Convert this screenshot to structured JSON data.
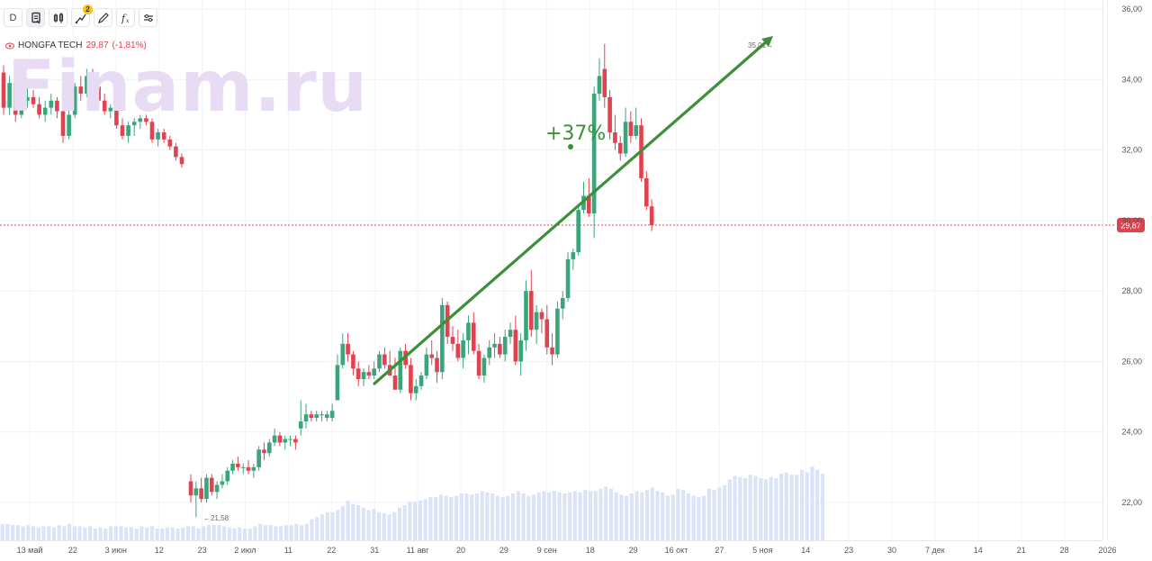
{
  "toolbar": {
    "interval_label": "D",
    "indicators_badge": "2"
  },
  "legend": {
    "ticker": "HONGFA TECH",
    "last": "29,87",
    "change": "(-1,81%)"
  },
  "watermark": "Finam.ru",
  "annotation": {
    "pct": "+37%",
    "low_label": "←21,58",
    "high_label": "35,01→"
  },
  "current_price_label": "29,87",
  "colors": {
    "up": "#3aa57a",
    "down": "#e0424f",
    "volume": "#dde3f7",
    "trend": "#3d8f3a"
  },
  "chart_data": {
    "type": "candlestick",
    "title": "HONGFA TECH",
    "ylim": [
      21.0,
      36.0
    ],
    "y_ticks": [
      "36,00",
      "34,00",
      "32,00",
      "30,00",
      "28,00",
      "26,00",
      "24,00",
      "22,00"
    ],
    "x_ticks": [
      "13 май",
      "22",
      "3 июн",
      "12",
      "23",
      "2 июл",
      "11",
      "22",
      "31",
      "11 авг",
      "20",
      "29",
      "9 сен",
      "18",
      "29",
      "16 окт",
      "27",
      "5 ноя",
      "14",
      "23",
      "30",
      "7 дек",
      "14",
      "21",
      "28",
      "2026"
    ],
    "last_price": 29.87,
    "low": 21.58,
    "high": 35.01,
    "trend_change": "+37%",
    "candles": [
      [
        34.2,
        34.4,
        33.0,
        33.2
      ],
      [
        33.2,
        34.1,
        33.0,
        33.9
      ],
      [
        33.9,
        34.2,
        32.8,
        33.0
      ],
      [
        33.0,
        33.6,
        32.9,
        33.4
      ],
      [
        33.4,
        33.8,
        33.2,
        33.5
      ],
      [
        33.5,
        33.7,
        33.2,
        33.3
      ],
      [
        33.3,
        33.5,
        32.9,
        33.0
      ],
      [
        33.0,
        33.4,
        32.8,
        33.2
      ],
      [
        33.2,
        33.6,
        33.0,
        33.4
      ],
      [
        33.4,
        33.5,
        32.9,
        33.1
      ],
      [
        33.1,
        33.3,
        32.2,
        32.4
      ],
      [
        32.4,
        33.2,
        32.3,
        33.0
      ],
      [
        33.0,
        33.9,
        32.9,
        33.8
      ],
      [
        33.8,
        34.1,
        33.4,
        33.6
      ],
      [
        33.6,
        34.3,
        33.5,
        34.1
      ],
      [
        34.1,
        34.3,
        33.7,
        33.8
      ],
      [
        33.8,
        34.0,
        33.2,
        33.4
      ],
      [
        33.4,
        33.6,
        33.0,
        33.1
      ],
      [
        33.1,
        33.3,
        32.9,
        33.2
      ],
      [
        33.2,
        33.4,
        32.6,
        32.7
      ],
      [
        32.7,
        32.9,
        32.3,
        32.4
      ],
      [
        32.4,
        32.8,
        32.2,
        32.7
      ],
      [
        32.7,
        32.9,
        32.4,
        32.8
      ],
      [
        32.8,
        33.0,
        32.6,
        32.9
      ],
      [
        32.9,
        33.0,
        32.7,
        32.8
      ],
      [
        32.8,
        32.9,
        32.2,
        32.3
      ],
      [
        32.3,
        32.6,
        32.1,
        32.5
      ],
      [
        32.5,
        32.6,
        32.2,
        32.3
      ],
      [
        32.3,
        32.4,
        32.0,
        32.1
      ],
      [
        32.1,
        32.2,
        31.7,
        31.8
      ],
      [
        31.8,
        31.9,
        31.5,
        31.6
      ],
      [
        22.6,
        22.8,
        22.0,
        22.2
      ],
      [
        22.2,
        22.6,
        21.58,
        22.4
      ],
      [
        22.4,
        22.7,
        22.0,
        22.1
      ],
      [
        22.1,
        22.8,
        22.0,
        22.7
      ],
      [
        22.7,
        22.8,
        22.2,
        22.3
      ],
      [
        22.3,
        22.6,
        22.1,
        22.5
      ],
      [
        22.5,
        22.8,
        22.4,
        22.6
      ],
      [
        22.6,
        23.0,
        22.5,
        22.9
      ],
      [
        22.9,
        23.2,
        22.8,
        23.1
      ],
      [
        23.1,
        23.3,
        22.9,
        23.0
      ],
      [
        23.0,
        23.1,
        22.8,
        23.0
      ],
      [
        23.0,
        23.2,
        22.8,
        22.9
      ],
      [
        22.9,
        23.1,
        22.7,
        23.0
      ],
      [
        23.0,
        23.6,
        22.9,
        23.5
      ],
      [
        23.5,
        23.7,
        23.2,
        23.4
      ],
      [
        23.4,
        23.8,
        23.3,
        23.7
      ],
      [
        23.7,
        24.1,
        23.6,
        23.9
      ],
      [
        23.9,
        24.0,
        23.6,
        23.7
      ],
      [
        23.7,
        23.9,
        23.5,
        23.8
      ],
      [
        23.8,
        23.9,
        23.6,
        23.8
      ],
      [
        23.8,
        23.9,
        23.5,
        23.7
      ],
      [
        24.1,
        24.9,
        23.9,
        24.3
      ],
      [
        24.3,
        24.8,
        24.1,
        24.5
      ],
      [
        24.5,
        24.6,
        24.3,
        24.4
      ],
      [
        24.4,
        24.6,
        24.3,
        24.5
      ],
      [
        24.5,
        24.6,
        24.3,
        24.5
      ],
      [
        24.4,
        24.6,
        24.3,
        24.5
      ],
      [
        24.4,
        24.8,
        24.3,
        24.6
      ],
      [
        24.9,
        26.2,
        24.9,
        25.9
      ],
      [
        25.9,
        26.8,
        25.8,
        26.5
      ],
      [
        26.5,
        26.8,
        26.0,
        26.2
      ],
      [
        26.2,
        26.3,
        25.6,
        25.8
      ],
      [
        25.8,
        26.0,
        25.3,
        25.5
      ],
      [
        25.5,
        25.8,
        25.3,
        25.7
      ],
      [
        25.7,
        25.9,
        25.5,
        25.6
      ],
      [
        25.6,
        26.0,
        25.5,
        25.8
      ],
      [
        25.8,
        26.3,
        25.7,
        26.2
      ],
      [
        26.2,
        26.4,
        25.8,
        25.9
      ],
      [
        25.9,
        26.3,
        25.6,
        25.6
      ],
      [
        25.6,
        26.1,
        25.2,
        25.2
      ],
      [
        25.2,
        26.4,
        25.1,
        26.3
      ],
      [
        26.3,
        26.5,
        25.8,
        25.9
      ],
      [
        25.9,
        26.1,
        24.9,
        25.1
      ],
      [
        25.1,
        25.5,
        24.9,
        25.3
      ],
      [
        25.3,
        25.7,
        25.2,
        25.6
      ],
      [
        25.6,
        26.4,
        25.5,
        26.2
      ],
      [
        26.2,
        26.6,
        25.9,
        26.1
      ],
      [
        26.1,
        26.3,
        25.4,
        25.7
      ],
      [
        25.7,
        27.8,
        25.5,
        27.6
      ],
      [
        27.6,
        27.7,
        26.5,
        26.7
      ],
      [
        26.7,
        27.0,
        26.3,
        26.5
      ],
      [
        26.5,
        26.9,
        26.0,
        26.1
      ],
      [
        26.1,
        26.8,
        25.8,
        26.6
      ],
      [
        26.6,
        27.3,
        26.2,
        27.1
      ],
      [
        27.1,
        27.4,
        26.2,
        26.3
      ],
      [
        26.3,
        26.5,
        25.5,
        25.6
      ],
      [
        25.6,
        26.2,
        25.4,
        26.1
      ],
      [
        26.1,
        26.6,
        25.9,
        26.4
      ],
      [
        26.4,
        26.8,
        26.1,
        26.5
      ],
      [
        26.5,
        26.7,
        26.1,
        26.2
      ],
      [
        26.2,
        26.9,
        26.0,
        26.7
      ],
      [
        26.7,
        27.1,
        26.5,
        26.9
      ],
      [
        26.9,
        27.3,
        25.9,
        26.0
      ],
      [
        26.0,
        26.8,
        25.6,
        26.6
      ],
      [
        26.6,
        28.3,
        26.3,
        28.0
      ],
      [
        28.0,
        28.6,
        26.7,
        26.9
      ],
      [
        26.9,
        27.6,
        26.5,
        27.4
      ],
      [
        27.4,
        27.5,
        26.8,
        27.2
      ],
      [
        27.2,
        27.6,
        26.2,
        26.4
      ],
      [
        26.4,
        26.8,
        25.9,
        26.2
      ],
      [
        26.2,
        27.7,
        26.1,
        27.5
      ],
      [
        27.5,
        28.0,
        27.2,
        27.8
      ],
      [
        27.8,
        29.1,
        27.7,
        28.9
      ],
      [
        28.9,
        29.2,
        28.6,
        29.1
      ],
      [
        29.1,
        30.4,
        29.0,
        30.3
      ],
      [
        30.3,
        31.1,
        30.2,
        30.7
      ],
      [
        30.7,
        31.2,
        30.1,
        30.2
      ],
      [
        30.2,
        33.8,
        29.5,
        33.6
      ],
      [
        33.6,
        34.6,
        33.4,
        34.1
      ],
      [
        34.3,
        35.01,
        33.2,
        33.5
      ],
      [
        33.5,
        33.7,
        32.3,
        32.5
      ],
      [
        32.5,
        33.0,
        32.0,
        32.2
      ],
      [
        32.2,
        32.4,
        31.7,
        31.9
      ],
      [
        31.9,
        33.2,
        31.8,
        32.8
      ],
      [
        32.8,
        33.1,
        32.2,
        32.4
      ],
      [
        32.4,
        33.2,
        32.3,
        32.7
      ],
      [
        32.7,
        32.9,
        31.1,
        31.2
      ],
      [
        31.2,
        31.4,
        30.3,
        30.4
      ],
      [
        30.4,
        30.6,
        29.7,
        29.87
      ]
    ],
    "volume_level": [
      0.14,
      0.14,
      0.13,
      0.13,
      0.12,
      0.13,
      0.12,
      0.11,
      0.12,
      0.12,
      0.11,
      0.13,
      0.12,
      0.14,
      0.12,
      0.12,
      0.11,
      0.12,
      0.1,
      0.11,
      0.1,
      0.12,
      0.12,
      0.12,
      0.11,
      0.11,
      0.1,
      0.12,
      0.11,
      0.12,
      0.1,
      0.1,
      0.11,
      0.11,
      0.1,
      0.11,
      0.12,
      0.12,
      0.1,
      0.12,
      0.13,
      0.13,
      0.13,
      0.12,
      0.11,
      0.1,
      0.11,
      0.1,
      0.1,
      0.12,
      0.14,
      0.13,
      0.13,
      0.12,
      0.12,
      0.13,
      0.13,
      0.14,
      0.13,
      0.14,
      0.18,
      0.2,
      0.22,
      0.24,
      0.24,
      0.26,
      0.29,
      0.34,
      0.31,
      0.3,
      0.28,
      0.26,
      0.27,
      0.24,
      0.23,
      0.22,
      0.24,
      0.28,
      0.3,
      0.33,
      0.33,
      0.34,
      0.35,
      0.37,
      0.37,
      0.39,
      0.38,
      0.37,
      0.38,
      0.4,
      0.4,
      0.39,
      0.4,
      0.42,
      0.41,
      0.4,
      0.38,
      0.37,
      0.38,
      0.4,
      0.42,
      0.4,
      0.38,
      0.39,
      0.41,
      0.42,
      0.41,
      0.42,
      0.41,
      0.4,
      0.41,
      0.42,
      0.41,
      0.43,
      0.42,
      0.42,
      0.44,
      0.46,
      0.44,
      0.41,
      0.39,
      0.38,
      0.4,
      0.42,
      0.41,
      0.43,
      0.45,
      0.42,
      0.41,
      0.38,
      0.39,
      0.44,
      0.43,
      0.4,
      0.38,
      0.37,
      0.38,
      0.44,
      0.43,
      0.45,
      0.47,
      0.52,
      0.55,
      0.54,
      0.53,
      0.56,
      0.55,
      0.53,
      0.52,
      0.54,
      0.53,
      0.57,
      0.58,
      0.56,
      0.56,
      0.6,
      0.58,
      0.63,
      0.6,
      0.57
    ]
  }
}
